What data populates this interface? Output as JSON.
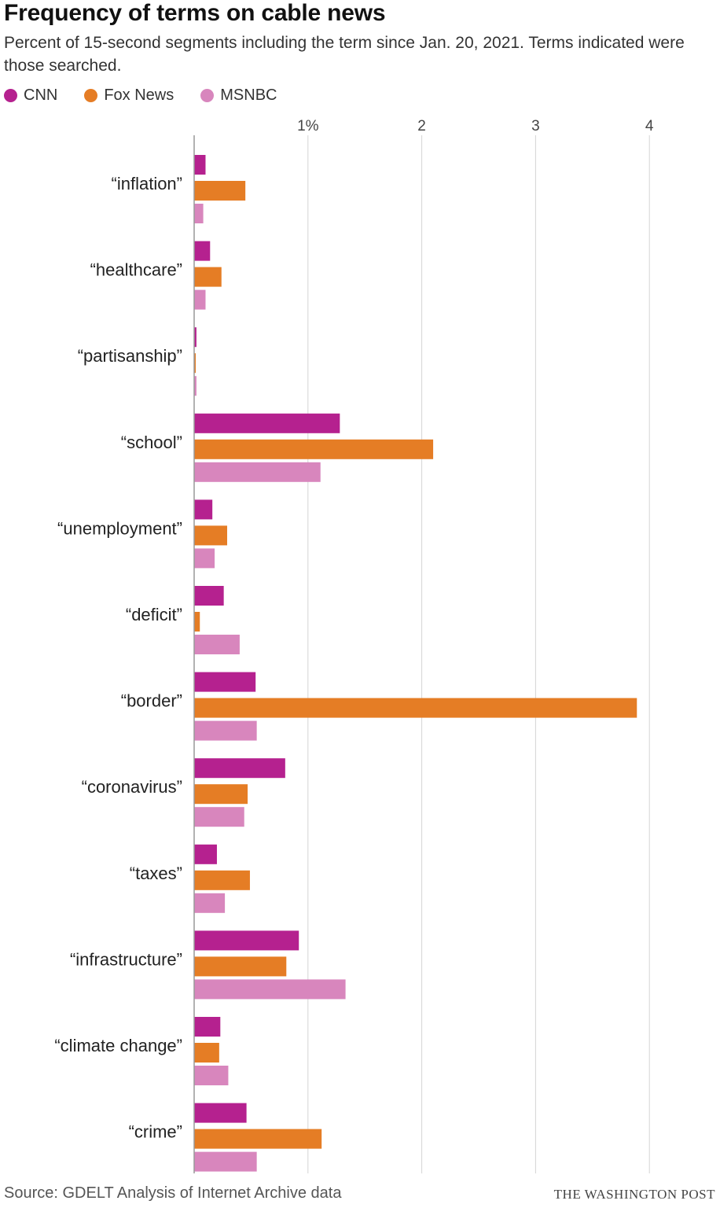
{
  "chart_data": {
    "type": "bar",
    "orientation": "horizontal",
    "title": "Frequency of terms on cable news",
    "subtitle": "Percent of 15-second segments including the term since Jan. 20, 2021. Terms indicated were those searched.",
    "xlim": [
      0,
      4
    ],
    "ticks": [
      {
        "value": 1,
        "label": "1%"
      },
      {
        "value": 2,
        "label": "2"
      },
      {
        "value": 3,
        "label": "3"
      },
      {
        "value": 4,
        "label": "4"
      }
    ],
    "categories": [
      "“inflation”",
      "“healthcare”",
      "“partisanship”",
      "“school”",
      "“unemployment”",
      "“deficit”",
      "“border”",
      "“coronavirus”",
      "“taxes”",
      "“infrastructure”",
      "“climate change”",
      "“crime”"
    ],
    "series": [
      {
        "name": "CNN",
        "color": "#b5218f",
        "values": [
          0.1,
          0.14,
          0.02,
          1.28,
          0.16,
          0.26,
          0.54,
          0.8,
          0.2,
          0.92,
          0.23,
          0.46
        ]
      },
      {
        "name": "Fox News",
        "color": "#e57d25",
        "values": [
          0.45,
          0.24,
          0.01,
          2.1,
          0.29,
          0.05,
          3.89,
          0.47,
          0.49,
          0.81,
          0.22,
          1.12
        ]
      },
      {
        "name": "MSNBC",
        "color": "#d886bd",
        "values": [
          0.08,
          0.1,
          0.02,
          1.11,
          0.18,
          0.4,
          0.55,
          0.44,
          0.27,
          1.33,
          0.3,
          0.55
        ]
      }
    ],
    "legend_position": "top-left",
    "grid": true
  },
  "footer": {
    "source": "Source: GDELT Analysis of Internet Archive data",
    "credit": "THE WASHINGTON POST"
  }
}
